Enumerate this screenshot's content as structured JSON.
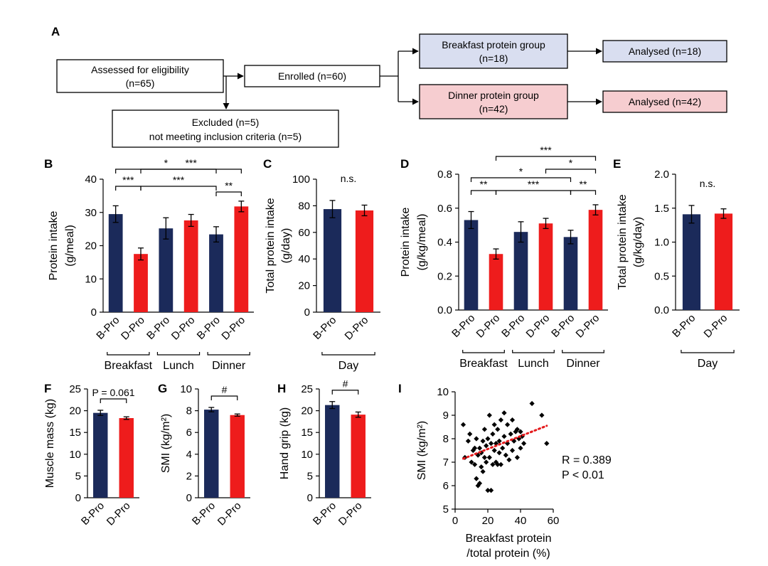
{
  "colors": {
    "bpro": "#1b2a5a",
    "dpro": "#ee1c1c",
    "box_blue": "#d9def0",
    "box_pink": "#f6cdd0",
    "trend": "#e41a1c"
  },
  "panel_letters": {
    "A": "A",
    "B": "B",
    "C": "C",
    "D": "D",
    "E": "E",
    "F": "F",
    "G": "G",
    "H": "H",
    "I": "I"
  },
  "flow": {
    "assessed_l1": "Assessed for eligibility",
    "assessed_l2": "(n=65)",
    "enrolled": "Enrolled  (n=60)",
    "excluded_l1": "Excluded  (n=5)",
    "excluded_l2": "not meeting inclusion criteria  (n=5)",
    "bgroup_l1": "Breakfast protein group",
    "bgroup_l2": "(n=18)",
    "dgroup_l1": "Dinner protein group",
    "dgroup_l2": "(n=42)",
    "banalysed": "Analysed   (n=18)",
    "danalysed": "Analysed   (n=42)"
  },
  "chart_data": [
    {
      "panel": "B",
      "type": "bar",
      "ylabel": "Protein intake",
      "ylabel2": "(g/meal)",
      "ylim": [
        0,
        40
      ],
      "yticks": [
        0,
        10,
        20,
        30,
        40
      ],
      "categories": [
        "B-Pro",
        "D-Pro",
        "B-Pro",
        "D-Pro",
        "B-Pro",
        "D-Pro"
      ],
      "values": [
        29.5,
        17.5,
        25.2,
        27.6,
        23.4,
        31.8
      ],
      "errors": [
        2.5,
        1.8,
        3.2,
        1.8,
        2.3,
        1.6
      ],
      "groups": [
        "Breakfast",
        "Lunch",
        "Dinner"
      ],
      "significance": [
        {
          "label": "*",
          "from": 0,
          "to": 4
        },
        {
          "label": "***",
          "from": 1,
          "to": 5
        },
        {
          "label": "***",
          "from": 0,
          "to": 1
        },
        {
          "label": "***",
          "from": 1,
          "to": 4
        },
        {
          "label": "**",
          "from": 4,
          "to": 5
        }
      ]
    },
    {
      "panel": "C",
      "type": "bar",
      "ylabel": "Total protein intake",
      "ylabel2": "(g/day)",
      "ylim": [
        0,
        100
      ],
      "yticks": [
        0,
        20,
        40,
        60,
        80,
        100
      ],
      "categories": [
        "B-Pro",
        "D-Pro"
      ],
      "values": [
        77.5,
        76.5
      ],
      "errors": [
        6.5,
        4.0
      ],
      "groups": [
        "Day"
      ],
      "significance": [
        {
          "label": "n.s.",
          "from": 0,
          "to": 1
        }
      ]
    },
    {
      "panel": "D",
      "type": "bar",
      "ylabel": "Protein intake",
      "ylabel2": "(g/kg/meal)",
      "ylim": [
        0,
        0.8
      ],
      "yticks": [
        "0.0",
        "0.2",
        "0.4",
        "0.6",
        "0.8"
      ],
      "categories": [
        "B-Pro",
        "D-Pro",
        "B-Pro",
        "D-Pro",
        "B-Pro",
        "D-Pro"
      ],
      "values": [
        0.53,
        0.33,
        0.46,
        0.51,
        0.43,
        0.59
      ],
      "errors": [
        0.05,
        0.03,
        0.06,
        0.03,
        0.04,
        0.03
      ],
      "groups": [
        "Breakfast",
        "Lunch",
        "Dinner"
      ],
      "significance": [
        {
          "label": "***",
          "from": 1,
          "to": 5
        },
        {
          "label": "*",
          "from": 3,
          "to": 5
        },
        {
          "label": "*",
          "from": 0,
          "to": 4
        },
        {
          "label": "**",
          "from": 0,
          "to": 1
        },
        {
          "label": "***",
          "from": 1,
          "to": 4
        },
        {
          "label": "**",
          "from": 4,
          "to": 5
        }
      ]
    },
    {
      "panel": "E",
      "type": "bar",
      "ylabel": "Total protein intake",
      "ylabel2": "(g/kg/day)",
      "ylim": [
        0,
        2.0
      ],
      "yticks": [
        "0.0",
        "0.5",
        "1.0",
        "1.5",
        "2.0"
      ],
      "categories": [
        "B-Pro",
        "D-Pro"
      ],
      "values": [
        1.41,
        1.42
      ],
      "errors": [
        0.13,
        0.07
      ],
      "groups": [
        "Day"
      ],
      "significance": [
        {
          "label": "n.s.",
          "from": 0,
          "to": 1
        }
      ]
    },
    {
      "panel": "F",
      "type": "bar",
      "ylabel": "Muscle mass (kg)",
      "ylim": [
        0,
        25
      ],
      "yticks": [
        0,
        5,
        10,
        15,
        20,
        25
      ],
      "categories": [
        "B-Pro",
        "D-Pro"
      ],
      "values": [
        19.5,
        18.3
      ],
      "errors": [
        0.6,
        0.3
      ],
      "significance": [
        {
          "label": "P = 0.061",
          "from": 0,
          "to": 1
        }
      ]
    },
    {
      "panel": "G",
      "type": "bar",
      "ylabel": "SMI (kg/m²)",
      "ylim": [
        0,
        10
      ],
      "yticks": [
        0,
        2,
        4,
        6,
        8,
        10
      ],
      "categories": [
        "B-Pro",
        "D-Pro"
      ],
      "values": [
        8.1,
        7.6
      ],
      "errors": [
        0.2,
        0.1
      ],
      "significance": [
        {
          "label": "#",
          "from": 0,
          "to": 1
        }
      ]
    },
    {
      "panel": "H",
      "type": "bar",
      "ylabel": "Hand grip (kg)",
      "ylim": [
        0,
        25
      ],
      "yticks": [
        0,
        5,
        10,
        15,
        20,
        25
      ],
      "categories": [
        "B-Pro",
        "D-Pro"
      ],
      "values": [
        21.3,
        19.1
      ],
      "errors": [
        0.8,
        0.6
      ],
      "significance": [
        {
          "label": "#",
          "from": 0,
          "to": 1
        }
      ]
    },
    {
      "panel": "I",
      "type": "scatter",
      "ylabel": "SMI (kg/m²)",
      "xlabel": "Breakfast protein",
      "xlabel2": "/total protein (%)",
      "xlim": [
        0,
        60
      ],
      "ylim": [
        5,
        10
      ],
      "xticks": [
        0,
        20,
        40,
        60
      ],
      "yticks": [
        5,
        6,
        7,
        8,
        9,
        10
      ],
      "annotation_r": "R = 0.389",
      "annotation_p": "P < 0.01",
      "trend": {
        "x0": 5,
        "y0": 7.15,
        "x1": 56,
        "y1": 8.55
      },
      "points": [
        [
          5,
          8.6
        ],
        [
          6,
          7.2
        ],
        [
          8,
          7.9
        ],
        [
          9,
          8.2
        ],
        [
          10,
          7.0
        ],
        [
          11,
          7.5
        ],
        [
          12,
          6.9
        ],
        [
          12,
          7.6
        ],
        [
          13,
          6.3
        ],
        [
          13,
          8.0
        ],
        [
          14,
          6.0
        ],
        [
          14,
          7.3
        ],
        [
          15,
          6.1
        ],
        [
          15,
          7.6
        ],
        [
          16,
          6.8
        ],
        [
          16,
          7.4
        ],
        [
          17,
          7.9
        ],
        [
          17,
          6.6
        ],
        [
          18,
          7.2
        ],
        [
          18,
          8.4
        ],
        [
          19,
          7.0
        ],
        [
          19,
          7.7
        ],
        [
          20,
          8.0
        ],
        [
          20,
          5.8
        ],
        [
          21,
          9.0
        ],
        [
          21,
          7.2
        ],
        [
          22,
          7.8
        ],
        [
          22,
          5.8
        ],
        [
          23,
          8.2
        ],
        [
          23,
          6.9
        ],
        [
          24,
          7.5
        ],
        [
          24,
          8.6
        ],
        [
          25,
          7.0
        ],
        [
          25,
          7.8
        ],
        [
          26,
          6.9
        ],
        [
          26,
          8.4
        ],
        [
          27,
          7.4
        ],
        [
          27,
          7.9
        ],
        [
          28,
          8.8
        ],
        [
          28,
          6.9
        ],
        [
          29,
          7.6
        ],
        [
          30,
          9.1
        ],
        [
          30,
          8.1
        ],
        [
          31,
          7.3
        ],
        [
          32,
          8.6
        ],
        [
          32,
          7.8
        ],
        [
          33,
          7.1
        ],
        [
          34,
          8.2
        ],
        [
          35,
          7.5
        ],
        [
          35,
          8.8
        ],
        [
          36,
          7.9
        ],
        [
          37,
          8.3
        ],
        [
          38,
          7.2
        ],
        [
          38,
          8.4
        ],
        [
          39,
          8.0
        ],
        [
          40,
          7.6
        ],
        [
          40,
          8.3
        ],
        [
          41,
          8.1
        ],
        [
          42,
          7.8
        ],
        [
          47,
          9.5
        ],
        [
          53,
          9.0
        ],
        [
          56,
          7.8
        ]
      ]
    }
  ]
}
